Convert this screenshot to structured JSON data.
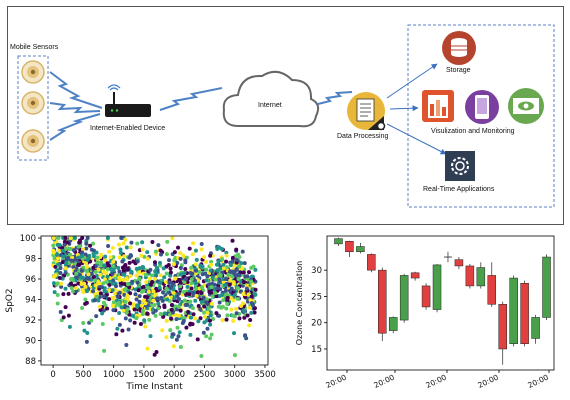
{
  "diagram": {
    "mobile_sensors": "Mobile Sensors",
    "device": "Internet-Enabled Device",
    "internet": "Internet",
    "data_processing": "Data Processing",
    "storage": "Storage",
    "visualization": "Visulization and Monitoring",
    "realtime": "Real-Time Applications",
    "colors": {
      "frame": "#555555",
      "dash_box": "#5b7fc7",
      "lightning": "#4f82c4",
      "sensor_ring": "#d9b56a",
      "storage": "#b5442f",
      "tablet": "#e0542d",
      "phone": "#7b3fa0",
      "monitor": "#6aa84f",
      "realtime": "#2f3e53",
      "processing": "#e8b73a"
    }
  },
  "chart_data": [
    {
      "type": "scatter",
      "ylabel": "SpO2",
      "xlabel": "Time Instant",
      "xticks": [
        0,
        500,
        1000,
        1500,
        2000,
        2500,
        3000,
        3500
      ],
      "yticks": [
        88,
        90,
        92,
        94,
        96,
        98,
        100
      ],
      "xlim": [
        -200,
        3550
      ],
      "ylim": [
        87.6,
        100.2
      ],
      "band": {
        "x": [
          0,
          300,
          500,
          700,
          900,
          1100,
          1300,
          1500,
          1700,
          1900,
          2050,
          2200,
          2400,
          2550,
          2700,
          2900,
          3100,
          3350
        ],
        "center": [
          98.3,
          97.8,
          97.2,
          96.5,
          96.0,
          95.5,
          95.7,
          95.3,
          95.2,
          95.0,
          94.8,
          95.0,
          95.0,
          94.8,
          96.3,
          96.0,
          95.5,
          94.5
        ],
        "spread": [
          1.8,
          1.8,
          1.8,
          2.0,
          2.2,
          2.6,
          2.5,
          2.3,
          2.3,
          2.5,
          3.0,
          2.3,
          2.2,
          2.3,
          2.0,
          2.0,
          2.0,
          1.8
        ]
      },
      "colormap": [
        "#440154",
        "#3b528b",
        "#21918c",
        "#5ec962",
        "#fde725"
      ]
    },
    {
      "type": "candlestick",
      "ylabel": "Ozone Concentration",
      "yticks": [
        15,
        20,
        25,
        30
      ],
      "ylim": [
        11,
        36.5
      ],
      "xticks": [
        "20:00",
        "20:00",
        "20:00",
        "20:00",
        "20:00"
      ],
      "candles": [
        {
          "o": 35,
          "c": 36,
          "h": 36.2,
          "l": 34.6
        },
        {
          "o": 35.5,
          "c": 33.5,
          "h": 35.6,
          "l": 32.5
        },
        {
          "o": 33.5,
          "c": 34.5,
          "h": 35.2,
          "l": 33.2
        },
        {
          "o": 33,
          "c": 30,
          "h": 33.2,
          "l": 29.6
        },
        {
          "o": 30,
          "c": 18,
          "h": 30.5,
          "l": 16.5
        },
        {
          "o": 18.5,
          "c": 21,
          "h": 21.2,
          "l": 18.0
        },
        {
          "o": 20.5,
          "c": 29,
          "h": 29.3,
          "l": 20.0
        },
        {
          "o": 29.5,
          "c": 28.5,
          "h": 29.7,
          "l": 28.0
        },
        {
          "o": 27,
          "c": 23,
          "h": 27.5,
          "l": 22.5
        },
        {
          "o": 22.5,
          "c": 31,
          "h": 31.2,
          "l": 22.0
        },
        {
          "o": 32.5,
          "c": 32.5,
          "h": 33.5,
          "l": 31.5
        },
        {
          "o": 32,
          "c": 30.8,
          "h": 32.5,
          "l": 30.2
        },
        {
          "o": 30.8,
          "c": 27,
          "h": 31.2,
          "l": 26.5
        },
        {
          "o": 27,
          "c": 30.5,
          "h": 31.5,
          "l": 26.5
        },
        {
          "o": 29,
          "c": 23.5,
          "h": 31.5,
          "l": 23.0
        },
        {
          "o": 23.5,
          "c": 15,
          "h": 24.0,
          "l": 12.0
        },
        {
          "o": 16,
          "c": 28.5,
          "h": 29.0,
          "l": 15.5
        },
        {
          "o": 27.5,
          "c": 16,
          "h": 28.0,
          "l": 15.5
        },
        {
          "o": 17,
          "c": 21,
          "h": 21.5,
          "l": 16.0
        },
        {
          "o": 21,
          "c": 32.5,
          "h": 33.0,
          "l": 20.5
        }
      ],
      "up_color": "#4aa04a",
      "down_color": "#e04040"
    }
  ]
}
